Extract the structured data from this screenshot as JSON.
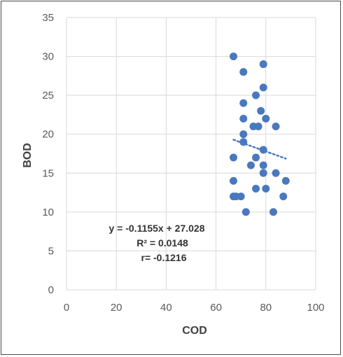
{
  "chart_data": {
    "type": "scatter",
    "xlabel": "COD",
    "ylabel": "BOD",
    "xlim": [
      0,
      100
    ],
    "ylim": [
      0,
      35
    ],
    "xticks": [
      0,
      20,
      40,
      60,
      80,
      100
    ],
    "yticks": [
      0,
      5,
      10,
      15,
      20,
      25,
      30,
      35
    ],
    "grid": "vertical and horizontal gridlines",
    "legend": "none",
    "colors": {
      "points": "#4a78bf",
      "trendline": "#4a78bf",
      "grid": "#d9d9d9",
      "text": "#595959"
    },
    "series": [
      {
        "points": [
          {
            "x": 67,
            "y": 30
          },
          {
            "x": 79,
            "y": 29
          },
          {
            "x": 71,
            "y": 28
          },
          {
            "x": 79,
            "y": 26
          },
          {
            "x": 76,
            "y": 25
          },
          {
            "x": 71,
            "y": 24
          },
          {
            "x": 78,
            "y": 23
          },
          {
            "x": 71,
            "y": 22
          },
          {
            "x": 80,
            "y": 22
          },
          {
            "x": 75,
            "y": 21
          },
          {
            "x": 77,
            "y": 21
          },
          {
            "x": 84,
            "y": 21
          },
          {
            "x": 71,
            "y": 20
          },
          {
            "x": 71,
            "y": 19
          },
          {
            "x": 79,
            "y": 18
          },
          {
            "x": 67,
            "y": 17
          },
          {
            "x": 76,
            "y": 17
          },
          {
            "x": 74,
            "y": 16
          },
          {
            "x": 79,
            "y": 16
          },
          {
            "x": 79,
            "y": 15
          },
          {
            "x": 84,
            "y": 15
          },
          {
            "x": 67,
            "y": 14
          },
          {
            "x": 88,
            "y": 14
          },
          {
            "x": 76,
            "y": 13
          },
          {
            "x": 80,
            "y": 13
          },
          {
            "x": 67,
            "y": 12
          },
          {
            "x": 68,
            "y": 12
          },
          {
            "x": 70,
            "y": 12
          },
          {
            "x": 87,
            "y": 12
          },
          {
            "x": 72,
            "y": 10
          },
          {
            "x": 83,
            "y": 10
          }
        ]
      }
    ],
    "trendline": {
      "type": "linear",
      "slope": -0.1155,
      "intercept": 27.028,
      "x_range": [
        67,
        88
      ],
      "style": "dotted"
    },
    "annotations": [
      "y = -0.1155x + 27.028",
      "R² = 0.0148",
      "r= -0.1216"
    ]
  }
}
